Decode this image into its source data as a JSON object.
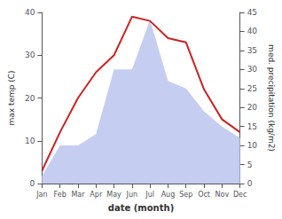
{
  "chart_data": {
    "type": "line",
    "xlabel": "date (month)",
    "ylabel": "max temp (C)",
    "y2label": "med. precipitation (kg/m2)",
    "categories": [
      "Jan",
      "Feb",
      "Mar",
      "Apr",
      "May",
      "Jun",
      "Jul",
      "Aug",
      "Sep",
      "Oct",
      "Nov",
      "Dec"
    ],
    "series": [
      {
        "type": "area",
        "axis": "y2",
        "color": "#c5cef0",
        "values": [
          2,
          10,
          10,
          13,
          30,
          30,
          43,
          27,
          25,
          19,
          15,
          12
        ]
      },
      {
        "type": "line",
        "color": "#cc2222",
        "values": [
          3,
          12,
          20,
          26,
          30,
          39,
          38,
          34,
          33,
          22,
          15,
          12
        ]
      }
    ],
    "ylim": [
      0,
      40
    ],
    "yticks": [
      0,
      10,
      20,
      30,
      40
    ],
    "y2lim": [
      0,
      45
    ],
    "y2ticks": [
      0,
      5,
      10,
      15,
      20,
      25,
      30,
      35,
      40,
      45
    ],
    "grid": false
  }
}
